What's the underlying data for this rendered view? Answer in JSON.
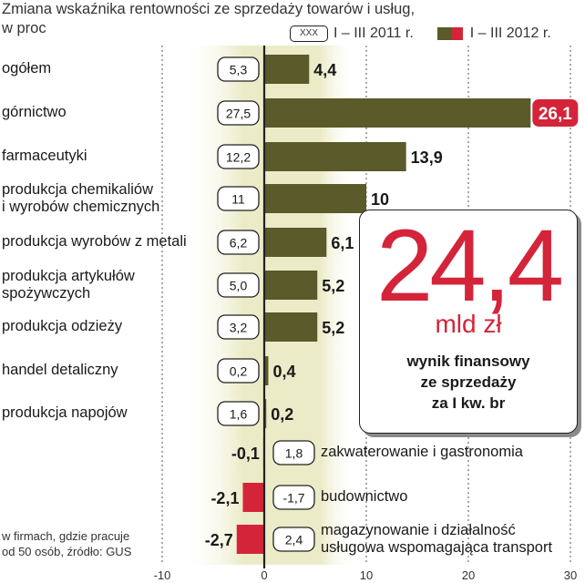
{
  "title": "Zmiana wskaźnika rentowności ze sprzedaży towarów i usług,\nw proc",
  "legend": {
    "series_old_marker": "XXX",
    "series_old": "I – III 2011 r.",
    "series_new": "I – III 2012 r."
  },
  "source_note": "w firmach, gdzie pracuje\nod 50 osób, źródło: GUS",
  "callout": {
    "value": "24,4",
    "unit": "mld zł",
    "description": "wynik finansowy\nze sprzedaży\nza I kw. br"
  },
  "colors": {
    "bar_new": "#5a5a2a",
    "bar_highlight": "#d4243a",
    "background_band": "#ecebc8",
    "axis": "#222222"
  },
  "chart_data": {
    "type": "bar",
    "orientation": "horizontal",
    "title": "Zmiana wskaźnika rentowności ze sprzedaży towarów i usług, w proc",
    "xlim": [
      -10,
      30
    ],
    "xticks": [
      "-10",
      "0",
      "10",
      "20",
      "30"
    ],
    "grid": "vertical dashed",
    "legend_position": "top-right",
    "categories": [
      "ogółem",
      "górnictwo",
      "farmaceutyki",
      "produkcja chemikaliów i wyrobów chemicznych",
      "produkcja wyrobów z metali",
      "produkcja artykułów spożywczych",
      "produkcja odzieży",
      "handel detaliczny",
      "produkcja napojów",
      "zakwaterowanie i gastronomia",
      "budownictwo",
      "magazynowanie i działalność usługowa wspomagająca transport"
    ],
    "series": [
      {
        "name": "I – III 2011 r.",
        "values": [
          5.3,
          27.5,
          12.2,
          11,
          6.2,
          5.0,
          3.2,
          0.2,
          1.6,
          1.8,
          -1.7,
          2.4
        ],
        "labels": [
          "5,3",
          "27,5",
          "12,2",
          "11",
          "6,2",
          "5,0",
          "3,2",
          "0,2",
          "1,6",
          "1,8",
          "-1,7",
          "2,4"
        ]
      },
      {
        "name": "I – III 2012 r.",
        "values": [
          4.4,
          26.1,
          13.9,
          10,
          6.1,
          5.2,
          5.2,
          0.4,
          0.2,
          -0.1,
          -2.1,
          -2.7
        ],
        "labels": [
          "4,4",
          "26,1",
          "13,9",
          "10",
          "6,1",
          "5,2",
          "5,2",
          "0,4",
          "0,2",
          "-0,1",
          "-2,1",
          "-2,7"
        ]
      }
    ],
    "highlight": "górnictwo"
  }
}
